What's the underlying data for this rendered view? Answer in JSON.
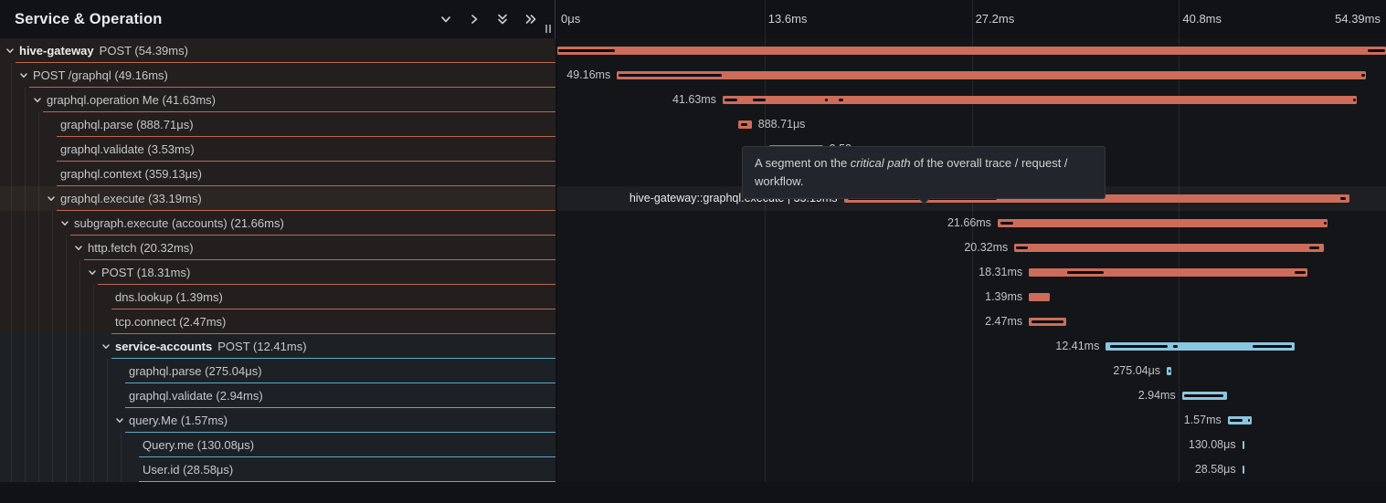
{
  "panel": {
    "title": "Service & Operation",
    "toolbar": [
      {
        "icon": "chevron-down-icon"
      },
      {
        "icon": "chevron-right-icon"
      },
      {
        "icon": "double-chevron-down-icon"
      },
      {
        "icon": "double-chevron-right-icon"
      }
    ]
  },
  "timeline": {
    "total_ms": 54.39,
    "ticks": [
      {
        "label": "0μs",
        "ms": 0
      },
      {
        "label": "13.6ms",
        "ms": 13.6
      },
      {
        "label": "27.2ms",
        "ms": 27.2
      },
      {
        "label": "40.8ms",
        "ms": 40.8
      },
      {
        "label": "54.39ms",
        "ms": 54.39
      }
    ]
  },
  "tooltip": {
    "prefix": "A segment on the ",
    "emphasis": "critical path",
    "suffix": " of the overall trace / request / workflow."
  },
  "colors": {
    "salmon": "#cd6d59",
    "salmon_border": "#bd6750",
    "blue": "#8ac6e0",
    "blue_border": "#5ea9c7",
    "critical_path": "#0d0d10"
  },
  "spans": [
    {
      "service": "hive-gateway",
      "operation": "POST",
      "duration": "54.39ms",
      "depth": 0,
      "expandable": true,
      "color": "salmon",
      "start_ms": 0,
      "dur_ms": 54.39,
      "bar_label": null,
      "label_side": "none",
      "hovered": false,
      "critical": [
        [
          0,
          3.84
        ],
        [
          53.15,
          54.39
        ]
      ]
    },
    {
      "service": null,
      "operation": "POST /graphql",
      "duration": "49.16ms",
      "depth": 1,
      "expandable": true,
      "color": "salmon",
      "start_ms": 3.91,
      "dur_ms": 49.16,
      "bar_label": "49.16ms",
      "label_side": "left",
      "hovered": false,
      "critical": [
        [
          3.98,
          10.85
        ],
        [
          52.7,
          53.05
        ]
      ]
    },
    {
      "service": null,
      "operation": "graphql.operation Me",
      "duration": "41.63ms",
      "depth": 2,
      "expandable": true,
      "color": "salmon",
      "start_ms": 10.85,
      "dur_ms": 41.63,
      "bar_label": "41.63ms",
      "label_side": "left",
      "hovered": false,
      "critical": [
        [
          10.9,
          11.9
        ],
        [
          12.75,
          13.75
        ],
        [
          17.5,
          17.8
        ],
        [
          18.4,
          18.85
        ],
        [
          52.2,
          52.45
        ]
      ]
    },
    {
      "service": null,
      "operation": "graphql.parse",
      "duration": "888.71μs",
      "depth": 3,
      "expandable": false,
      "color": "salmon",
      "start_ms": 11.87,
      "dur_ms": 0.88871,
      "bar_label": "888.71μs",
      "label_side": "right",
      "hovered": false,
      "critical": [
        [
          12.0,
          12.55
        ]
      ]
    },
    {
      "service": null,
      "operation": "graphql.validate",
      "duration": "3.53ms",
      "depth": 3,
      "expandable": false,
      "color": "salmon",
      "start_ms": 13.9,
      "dur_ms": 3.53,
      "bar_label": "3.53ms",
      "label_side": "right",
      "hovered": false,
      "critical": [
        [
          14.0,
          17.25
        ]
      ]
    },
    {
      "service": null,
      "operation": "graphql.context",
      "duration": "359.13μs",
      "depth": 3,
      "expandable": false,
      "color": "salmon",
      "start_ms": 17.5,
      "dur_ms": 0.35913,
      "bar_label": "359.13μs",
      "label_side": "right",
      "hovered": false,
      "critical": []
    },
    {
      "service": null,
      "operation": "graphql.execute",
      "duration": "33.19ms",
      "depth": 3,
      "expandable": true,
      "color": "salmon",
      "start_ms": 18.8,
      "dur_ms": 33.19,
      "bar_label": "hive-gateway::graphql.execute | 33.19ms",
      "label_side": "left",
      "hovered": true,
      "critical": [
        [
          19.0,
          28.9
        ],
        [
          51.35,
          51.8
        ]
      ]
    },
    {
      "service": null,
      "operation": "subgraph.execute (accounts)",
      "duration": "21.66ms",
      "depth": 4,
      "expandable": true,
      "color": "salmon",
      "start_ms": 28.9,
      "dur_ms": 21.66,
      "bar_label": "21.66ms",
      "label_side": "left",
      "hovered": false,
      "critical": [
        [
          29.0,
          30.0
        ],
        [
          50.25,
          50.55
        ]
      ]
    },
    {
      "service": null,
      "operation": "http.fetch",
      "duration": "20.32ms",
      "depth": 5,
      "expandable": true,
      "color": "salmon",
      "start_ms": 30.0,
      "dur_ms": 20.32,
      "bar_label": "20.32ms",
      "label_side": "left",
      "hovered": false,
      "critical": [
        [
          30.05,
          30.95
        ],
        [
          49.3,
          50.1
        ]
      ]
    },
    {
      "service": null,
      "operation": "POST",
      "duration": "18.31ms",
      "depth": 6,
      "expandable": true,
      "color": "salmon",
      "start_ms": 30.95,
      "dur_ms": 18.31,
      "bar_label": "18.31ms",
      "label_side": "left",
      "hovered": false,
      "critical": [
        [
          33.4,
          35.9
        ],
        [
          48.35,
          49.2
        ]
      ]
    },
    {
      "service": null,
      "operation": "dns.lookup",
      "duration": "1.39ms",
      "depth": 7,
      "expandable": false,
      "color": "salmon",
      "start_ms": 30.95,
      "dur_ms": 1.39,
      "bar_label": "1.39ms",
      "label_side": "left",
      "hovered": false,
      "critical": []
    },
    {
      "service": null,
      "operation": "tcp.connect",
      "duration": "2.47ms",
      "depth": 7,
      "expandable": false,
      "color": "salmon",
      "start_ms": 30.95,
      "dur_ms": 2.47,
      "bar_label": "2.47ms",
      "label_side": "left",
      "hovered": false,
      "critical": [
        [
          31.05,
          33.3
        ]
      ]
    },
    {
      "service": "service-accounts",
      "operation": "POST",
      "duration": "12.41ms",
      "depth": 7,
      "expandable": true,
      "color": "blue",
      "start_ms": 36.0,
      "dur_ms": 12.41,
      "bar_label": "12.41ms",
      "label_side": "left",
      "hovered": false,
      "critical": [
        [
          36.2,
          40.1
        ],
        [
          40.35,
          40.75
        ],
        [
          45.6,
          48.25
        ]
      ]
    },
    {
      "service": null,
      "operation": "graphql.parse",
      "duration": "275.04μs",
      "depth": 8,
      "expandable": false,
      "color": "blue",
      "start_ms": 40.0,
      "dur_ms": 0.27504,
      "bar_label": "275.04μs",
      "label_side": "left",
      "hovered": false,
      "critical": [
        [
          40.06,
          40.2
        ]
      ]
    },
    {
      "service": null,
      "operation": "graphql.validate",
      "duration": "2.94ms",
      "depth": 8,
      "expandable": false,
      "color": "blue",
      "start_ms": 41.0,
      "dur_ms": 2.94,
      "bar_label": "2.94ms",
      "label_side": "left",
      "hovered": false,
      "critical": [
        [
          41.1,
          43.8
        ]
      ]
    },
    {
      "service": null,
      "operation": "query.Me",
      "duration": "1.57ms",
      "depth": 8,
      "expandable": true,
      "color": "blue",
      "start_ms": 44.0,
      "dur_ms": 1.57,
      "bar_label": "1.57ms",
      "label_side": "left",
      "hovered": false,
      "critical": [
        [
          44.1,
          45.05
        ],
        [
          45.25,
          45.5
        ]
      ]
    },
    {
      "service": null,
      "operation": "Query.me",
      "duration": "130.08μs",
      "depth": 9,
      "expandable": false,
      "color": "blue",
      "start_ms": 44.95,
      "dur_ms": 0.13008,
      "bar_label": "130.08μs",
      "label_side": "left",
      "hovered": false,
      "critical": []
    },
    {
      "service": null,
      "operation": "User.id",
      "duration": "28.58μs",
      "depth": 9,
      "expandable": false,
      "color": "blue",
      "start_ms": 44.95,
      "dur_ms": 0.02858,
      "bar_label": "28.58μs",
      "label_side": "left",
      "hovered": false,
      "critical": []
    }
  ]
}
